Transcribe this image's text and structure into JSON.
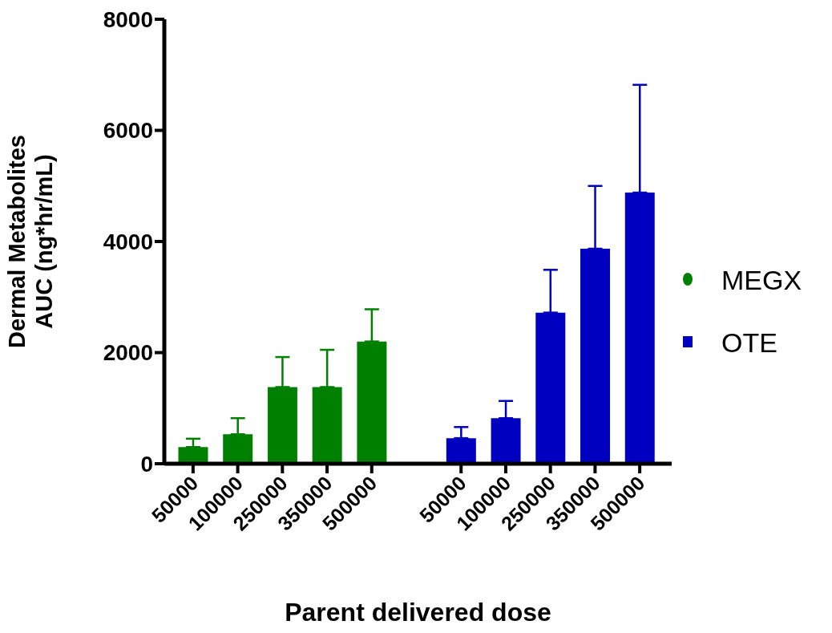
{
  "chart_data": {
    "type": "bar",
    "xlabel": "Parent delivered dose",
    "ylabel": "Dermal Metabolites\nAUC (ng*hr/mL)",
    "categories": [
      "50000",
      "100000",
      "250000",
      "350000",
      "500000",
      null,
      "50000",
      "100000",
      "250000",
      "350000",
      "500000"
    ],
    "series": [
      {
        "name": "MEGX",
        "color": "#008000",
        "marker": "circle",
        "values": [
          300,
          530,
          1380,
          1380,
          2200,
          null,
          null,
          null,
          null,
          null,
          null
        ],
        "errors": [
          [
            300,
            450
          ],
          [
            530,
            820
          ],
          [
            1380,
            1920
          ],
          [
            1380,
            2050
          ],
          [
            2200,
            2780
          ],
          null,
          null,
          null,
          null,
          null,
          null
        ]
      },
      {
        "name": "OTE",
        "color": "#0000c0",
        "marker": "square",
        "values": [
          null,
          null,
          null,
          null,
          null,
          null,
          460,
          820,
          2720,
          3870,
          4880
        ],
        "errors": [
          null,
          null,
          null,
          null,
          null,
          null,
          [
            460,
            660
          ],
          [
            820,
            1130
          ],
          [
            2720,
            3490
          ],
          [
            3870,
            5000
          ],
          [
            4880,
            6820
          ]
        ]
      }
    ],
    "ylim": [
      0,
      8000
    ],
    "yticks": [
      0,
      2000,
      4000,
      6000,
      8000
    ],
    "grid": false,
    "legend": "right"
  }
}
